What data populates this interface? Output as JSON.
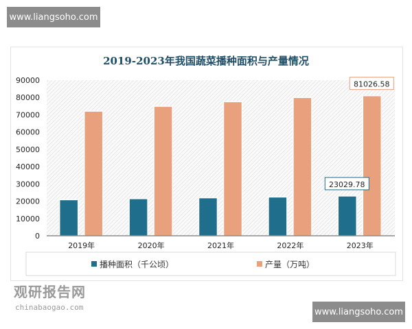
{
  "watermark": {
    "top": "www.liangsoho.com",
    "bottom": "www.liangsoho.com",
    "brand_cn": "观研报告网",
    "brand_en": "chinabaogao.com"
  },
  "colors": {
    "area": "#1f6e8c",
    "output": "#e9a07c"
  },
  "chart_data": {
    "type": "bar",
    "title": "2019-2023年我国蔬菜播种面积与产量情况",
    "categories": [
      "2019年",
      "2020年",
      "2021年",
      "2022年",
      "2023年"
    ],
    "series": [
      {
        "name": "播种面积（千公顷）",
        "values": [
          20862.7,
          21485.5,
          21986.1,
          22434.1,
          23029.78
        ]
      },
      {
        "name": "产量（万吨）",
        "values": [
          72102.6,
          74912.9,
          77548.8,
          79997.2,
          81026.58
        ]
      }
    ],
    "data_labels": [
      "23029.78",
      "81026.58"
    ],
    "ylim": [
      0,
      90000
    ],
    "yticks": [
      "0",
      "10000",
      "20000",
      "30000",
      "40000",
      "50000",
      "60000",
      "70000",
      "80000",
      "90000"
    ],
    "legend": "bottom",
    "grid": false
  }
}
